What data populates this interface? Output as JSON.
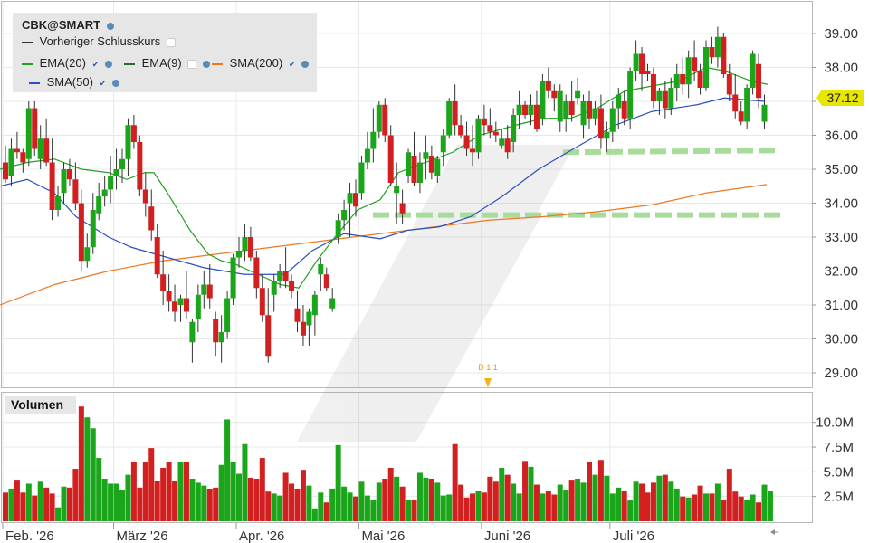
{
  "legend": {
    "symbol": "CBK@SMART",
    "prev_close": "Vorheriger Schlusskurs",
    "ema20": "EMA(20)",
    "ema9": "EMA(9)",
    "sma200": "SMA(200)",
    "sma50": "SMA(50)"
  },
  "volume_label": "Volumen",
  "current_price": "37.12",
  "event_marker": "D 1.1",
  "colors": {
    "up": "#1aa51a",
    "down": "#d21f1f",
    "ema20": "#22a022",
    "ema9": "#2c6b2c",
    "sma200": "#f07820",
    "sma50": "#2a4fc0",
    "level": "#a8dc9a",
    "price_tag": "#e6e600"
  },
  "icons": [
    "settings-dot-icon",
    "check-icon",
    "scroll-arrow-icon"
  ],
  "chart_data": {
    "type": "candlestick",
    "symbol": "CBK@SMART",
    "price_axis": {
      "ticks": [
        "39.00",
        "38.00",
        "37.00",
        "36.00",
        "35.00",
        "34.00",
        "33.00",
        "32.00",
        "31.00",
        "30.00",
        "29.00"
      ],
      "ylim": [
        28.6,
        39.4
      ]
    },
    "volume_axis": {
      "ticks": [
        "10.0M",
        "7.5M",
        "5.0M",
        "2.5M"
      ],
      "ylim": [
        0,
        13000000
      ]
    },
    "x_axis": {
      "labels": [
        "Feb. '26",
        "März '26",
        "Apr. '26",
        "Mai '26",
        "Juni '26",
        "Juli '26"
      ],
      "label_positions": [
        0,
        19,
        40,
        61,
        82,
        104
      ]
    },
    "candles": [
      [
        35.2,
        35.7,
        34.6,
        34.7
      ],
      [
        34.8,
        35.9,
        34.5,
        35.6
      ],
      [
        35.6,
        36.1,
        35.3,
        35.5
      ],
      [
        35.5,
        35.6,
        34.9,
        35.2
      ],
      [
        35.3,
        37.0,
        35.1,
        36.8
      ],
      [
        36.8,
        37.0,
        35.4,
        35.6
      ],
      [
        35.3,
        36.3,
        35.0,
        35.9
      ],
      [
        35.9,
        36.5,
        35.1,
        35.2
      ],
      [
        35.2,
        35.9,
        33.5,
        33.8
      ],
      [
        33.8,
        34.5,
        33.6,
        34.2
      ],
      [
        34.3,
        35.2,
        34.0,
        35.0
      ],
      [
        35.0,
        35.3,
        34.5,
        34.7
      ],
      [
        34.7,
        35.2,
        33.8,
        34.0
      ],
      [
        34.0,
        34.4,
        32.0,
        32.3
      ],
      [
        32.3,
        33.1,
        32.1,
        32.7
      ],
      [
        32.7,
        34.3,
        32.5,
        33.8
      ],
      [
        33.7,
        34.6,
        33.5,
        34.2
      ],
      [
        34.2,
        34.8,
        33.9,
        34.4
      ],
      [
        34.4,
        35.4,
        34.0,
        34.8
      ],
      [
        34.8,
        35.6,
        34.4,
        35.0
      ],
      [
        35.0,
        35.6,
        34.6,
        35.3
      ],
      [
        35.3,
        36.5,
        34.8,
        36.3
      ],
      [
        36.3,
        36.6,
        35.6,
        35.8
      ],
      [
        35.8,
        36.0,
        34.2,
        34.4
      ],
      [
        34.4,
        34.9,
        33.6,
        34.0
      ],
      [
        33.9,
        34.4,
        32.9,
        33.2
      ],
      [
        33.0,
        33.4,
        31.8,
        31.9
      ],
      [
        31.9,
        32.6,
        31.0,
        31.4
      ],
      [
        31.4,
        31.9,
        30.8,
        31.1
      ],
      [
        31.1,
        31.6,
        30.5,
        30.8
      ],
      [
        31.0,
        31.3,
        30.5,
        31.2
      ],
      [
        31.2,
        32.0,
        30.6,
        30.8
      ],
      [
        29.9,
        30.6,
        29.3,
        30.5
      ],
      [
        30.6,
        31.6,
        30.2,
        31.3
      ],
      [
        31.3,
        32.0,
        30.9,
        31.6
      ],
      [
        31.6,
        32.2,
        30.9,
        31.2
      ],
      [
        30.6,
        30.8,
        29.5,
        29.9
      ],
      [
        29.9,
        30.7,
        29.3,
        30.2
      ],
      [
        30.2,
        31.4,
        30.0,
        31.2
      ],
      [
        31.2,
        32.5,
        31.0,
        32.4
      ],
      [
        32.4,
        33.0,
        32.1,
        32.6
      ],
      [
        32.6,
        33.4,
        32.3,
        33.0
      ],
      [
        33.0,
        33.3,
        32.3,
        32.4
      ],
      [
        32.4,
        32.6,
        31.2,
        31.5
      ],
      [
        31.5,
        31.9,
        30.5,
        30.7
      ],
      [
        30.7,
        31.5,
        29.3,
        29.5
      ],
      [
        31.3,
        31.9,
        30.8,
        31.7
      ],
      [
        31.7,
        32.2,
        31.5,
        32.0
      ],
      [
        32.0,
        32.7,
        31.5,
        31.7
      ],
      [
        31.7,
        31.9,
        31.2,
        31.4
      ],
      [
        30.9,
        31.4,
        30.2,
        30.5
      ],
      [
        30.5,
        31.0,
        29.8,
        30.1
      ],
      [
        30.4,
        30.9,
        29.8,
        30.8
      ],
      [
        30.7,
        31.4,
        30.1,
        31.3
      ],
      [
        31.9,
        32.4,
        31.4,
        32.2
      ],
      [
        31.9,
        32.1,
        31.4,
        31.5
      ],
      [
        30.9,
        31.5,
        30.8,
        31.2
      ],
      [
        33.0,
        33.7,
        32.8,
        33.5
      ],
      [
        33.5,
        34.1,
        33.2,
        33.8
      ],
      [
        34.0,
        34.6,
        33.0,
        34.3
      ],
      [
        34.3,
        34.7,
        33.6,
        33.9
      ],
      [
        34.3,
        35.4,
        34.1,
        35.2
      ],
      [
        35.2,
        36.1,
        35.0,
        35.6
      ],
      [
        35.6,
        36.8,
        35.2,
        36.1
      ],
      [
        36.1,
        37.0,
        35.9,
        36.9
      ],
      [
        36.9,
        37.1,
        35.8,
        36.0
      ],
      [
        36.0,
        36.3,
        34.5,
        34.6
      ],
      [
        34.3,
        35.2,
        33.4,
        34.5
      ],
      [
        34.0,
        34.4,
        33.4,
        33.7
      ],
      [
        34.8,
        35.6,
        34.6,
        35.5
      ],
      [
        35.4,
        36.1,
        34.5,
        34.6
      ],
      [
        34.6,
        35.5,
        34.3,
        35.2
      ],
      [
        35.3,
        36.0,
        34.7,
        35.5
      ],
      [
        35.4,
        35.7,
        34.7,
        34.9
      ],
      [
        34.8,
        35.4,
        34.6,
        35.3
      ],
      [
        35.5,
        36.2,
        35.1,
        36.0
      ],
      [
        36.0,
        37.1,
        35.9,
        37.0
      ],
      [
        37.0,
        37.5,
        36.0,
        36.3
      ],
      [
        36.3,
        36.6,
        35.9,
        36.0
      ],
      [
        36.0,
        36.4,
        35.4,
        35.6
      ],
      [
        35.6,
        36.3,
        35.1,
        35.5
      ],
      [
        35.5,
        36.6,
        35.3,
        36.5
      ],
      [
        36.5,
        36.9,
        36.0,
        36.3
      ],
      [
        36.3,
        36.8,
        35.9,
        36.1
      ],
      [
        36.1,
        36.4,
        35.8,
        36.0
      ],
      [
        35.7,
        36.2,
        35.6,
        35.9
      ],
      [
        35.9,
        36.3,
        35.3,
        35.5
      ],
      [
        35.8,
        36.8,
        35.5,
        36.6
      ],
      [
        36.6,
        37.3,
        36.2,
        36.9
      ],
      [
        36.9,
        37.0,
        36.5,
        36.6
      ],
      [
        36.6,
        37.2,
        36.3,
        36.9
      ],
      [
        36.9,
        37.3,
        36.1,
        36.2
      ],
      [
        36.5,
        37.8,
        36.3,
        37.6
      ],
      [
        37.6,
        38.0,
        37.1,
        37.3
      ],
      [
        37.3,
        37.5,
        36.7,
        37.1
      ],
      [
        36.4,
        37.5,
        36.1,
        37.3
      ],
      [
        36.5,
        37.2,
        36.1,
        37.0
      ],
      [
        37.0,
        37.6,
        36.4,
        36.6
      ],
      [
        37.1,
        37.7,
        36.9,
        37.3
      ],
      [
        36.3,
        37.2,
        35.9,
        37.0
      ],
      [
        37.0,
        37.3,
        36.2,
        36.5
      ],
      [
        36.5,
        37.0,
        36.3,
        36.8
      ],
      [
        36.8,
        37.2,
        35.6,
        35.9
      ],
      [
        35.9,
        36.4,
        35.5,
        36.1
      ],
      [
        36.1,
        37.0,
        35.8,
        36.8
      ],
      [
        36.8,
        37.4,
        36.2,
        37.2
      ],
      [
        37.0,
        37.3,
        36.3,
        36.5
      ],
      [
        36.5,
        38.0,
        36.2,
        37.9
      ],
      [
        37.9,
        38.8,
        37.6,
        38.4
      ],
      [
        38.4,
        38.6,
        37.3,
        37.8
      ],
      [
        37.9,
        38.1,
        37.6,
        37.8
      ],
      [
        37.8,
        38.0,
        36.8,
        37.0
      ],
      [
        37.0,
        37.4,
        36.6,
        37.3
      ],
      [
        37.3,
        37.6,
        36.5,
        36.8
      ],
      [
        36.8,
        37.7,
        36.6,
        37.4
      ],
      [
        37.4,
        38.1,
        37.0,
        37.8
      ],
      [
        37.8,
        38.3,
        37.2,
        37.5
      ],
      [
        37.5,
        38.5,
        37.1,
        38.3
      ],
      [
        38.3,
        38.8,
        37.6,
        37.9
      ],
      [
        37.9,
        38.1,
        37.2,
        37.4
      ],
      [
        37.4,
        38.8,
        37.3,
        38.6
      ],
      [
        38.6,
        38.9,
        38.1,
        38.3
      ],
      [
        38.3,
        39.2,
        38.0,
        38.9
      ],
      [
        38.9,
        39.0,
        37.7,
        37.8
      ],
      [
        37.8,
        38.1,
        37.0,
        37.2
      ],
      [
        37.2,
        37.8,
        36.5,
        36.7
      ],
      [
        36.7,
        37.0,
        36.3,
        36.4
      ],
      [
        36.4,
        37.5,
        36.2,
        37.4
      ],
      [
        37.4,
        38.5,
        37.2,
        38.4
      ],
      [
        38.1,
        38.4,
        36.8,
        37.1
      ],
      [
        36.4,
        37.2,
        36.2,
        36.9
      ]
    ],
    "volume_millions": [
      2.9,
      3.3,
      4.2,
      2.9,
      3.8,
      2.6,
      4.0,
      3.4,
      2.8,
      1.4,
      3.5,
      3.4,
      5.3,
      11.6,
      10.5,
      9.4,
      6.4,
      4.3,
      3.8,
      3.8,
      3.2,
      4.7,
      6.0,
      3.4,
      6.0,
      7.4,
      4.1,
      5.4,
      6.0,
      4.1,
      6.0,
      6.0,
      4.3,
      3.9,
      3.6,
      3.3,
      3.4,
      5.7,
      10.3,
      6.0,
      4.8,
      7.8,
      4.4,
      4.3,
      6.4,
      3.0,
      2.8,
      2.6,
      4.9,
      3.8,
      3.3,
      5.2,
      3.6,
      1.3,
      2.9,
      1.9,
      3.3,
      7.7,
      3.5,
      2.9,
      2.5,
      4.0,
      2.6,
      2.2,
      3.9,
      4.3,
      5.4,
      4.5,
      3.5,
      2.2,
      2.2,
      4.9,
      4.4,
      4.3,
      3.9,
      2.6,
      2.7,
      7.8,
      3.7,
      2.4,
      2.8,
      3.1,
      2.9,
      4.5,
      4.0,
      5.4,
      4.7,
      3.8,
      2.8,
      6.1,
      5.5,
      3.7,
      2.8,
      3.1,
      2.7,
      3.7,
      3.2,
      4.2,
      4.3,
      3.9,
      6.0,
      4.7,
      6.2,
      4.6,
      2.8,
      3.4,
      3.1,
      2.1,
      4.0,
      3.8,
      2.9,
      3.9,
      4.6,
      4.7,
      4.0,
      3.3,
      2.5,
      2.4,
      2.7,
      3.6,
      2.8,
      2.8,
      3.8,
      2.2,
      5.3,
      3.0,
      2.5,
      2.2,
      2.7,
      1.9,
      3.7,
      3.1
    ],
    "sma50": [
      [
        0,
        34.5
      ],
      [
        30,
        34.7
      ],
      [
        60,
        34.3
      ],
      [
        84,
        33.6
      ],
      [
        120,
        33.0
      ],
      [
        145,
        32.7
      ],
      [
        185,
        32.4
      ],
      [
        225,
        32.1
      ],
      [
        270,
        31.9
      ],
      [
        315,
        31.9
      ],
      [
        345,
        32.6
      ],
      [
        380,
        33.1
      ],
      [
        420,
        32.95
      ],
      [
        450,
        33.2
      ],
      [
        485,
        33.3
      ],
      [
        520,
        33.6
      ],
      [
        555,
        34.2
      ],
      [
        595,
        35.0
      ],
      [
        640,
        35.7
      ],
      [
        680,
        36.3
      ],
      [
        720,
        36.7
      ],
      [
        770,
        36.9
      ],
      [
        800,
        37.1
      ],
      [
        845,
        37.0
      ]
    ],
    "ema20": [
      [
        0,
        35.0
      ],
      [
        30,
        35.2
      ],
      [
        60,
        35.3
      ],
      [
        90,
        35.0
      ],
      [
        120,
        34.9
      ],
      [
        140,
        34.7
      ],
      [
        160,
        34.9
      ],
      [
        170,
        34.9
      ],
      [
        185,
        34.3
      ],
      [
        210,
        33.2
      ],
      [
        230,
        32.5
      ],
      [
        245,
        32.3
      ],
      [
        260,
        32.2
      ],
      [
        285,
        31.9
      ],
      [
        310,
        31.6
      ],
      [
        330,
        31.5
      ],
      [
        350,
        32.3
      ],
      [
        370,
        33.0
      ],
      [
        395,
        33.8
      ],
      [
        420,
        34.1
      ],
      [
        440,
        34.9
      ],
      [
        470,
        35.2
      ],
      [
        500,
        35.5
      ],
      [
        530,
        36.0
      ],
      [
        570,
        36.3
      ],
      [
        600,
        36.5
      ],
      [
        630,
        36.5
      ],
      [
        660,
        36.8
      ],
      [
        690,
        37.3
      ],
      [
        710,
        37.4
      ],
      [
        750,
        37.6
      ],
      [
        780,
        38.0
      ],
      [
        800,
        37.9
      ],
      [
        830,
        37.6
      ],
      [
        848,
        37.5
      ]
    ],
    "sma200": [
      [
        0,
        31.0
      ],
      [
        60,
        31.6
      ],
      [
        120,
        32.0
      ],
      [
        180,
        32.3
      ],
      [
        240,
        32.5
      ],
      [
        300,
        32.7
      ],
      [
        360,
        32.9
      ],
      [
        420,
        33.1
      ],
      [
        480,
        33.3
      ],
      [
        540,
        33.5
      ],
      [
        600,
        33.6
      ],
      [
        660,
        33.75
      ],
      [
        720,
        33.95
      ],
      [
        780,
        34.3
      ],
      [
        847,
        34.55
      ]
    ],
    "support_levels": [
      35.5,
      33.65
    ]
  }
}
